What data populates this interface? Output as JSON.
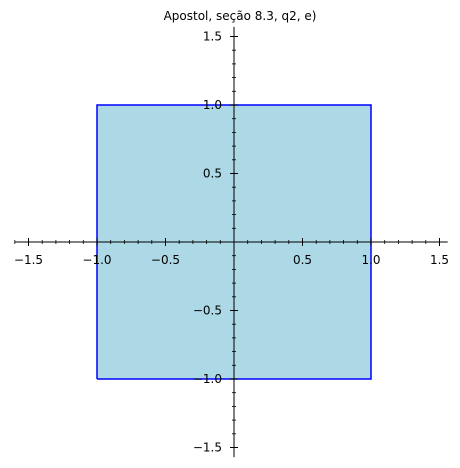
{
  "chart_data": {
    "type": "area",
    "title": "Apostol, seção 8.3, q2, e)",
    "xlabel": "",
    "ylabel": "",
    "xlim": [
      -1.6,
      1.56
    ],
    "ylim": [
      -1.57,
      1.57
    ],
    "grid": false,
    "x_ticks": [
      {
        "value": -1.5,
        "label": "−1.5"
      },
      {
        "value": -1.0,
        "label": "−1.0"
      },
      {
        "value": -0.5,
        "label": "−0.5"
      },
      {
        "value": 0.5,
        "label": "0.5"
      },
      {
        "value": 1.0,
        "label": "1.0"
      },
      {
        "value": 1.5,
        "label": "1.5"
      }
    ],
    "y_ticks": [
      {
        "value": 1.5,
        "label": "1.5"
      },
      {
        "value": 1.0,
        "label": "1.0"
      },
      {
        "value": 0.5,
        "label": "0.5"
      },
      {
        "value": -0.5,
        "label": "−0.5"
      },
      {
        "value": -1.0,
        "label": "−1.0"
      },
      {
        "value": -1.5,
        "label": "−1.5"
      }
    ],
    "series": [
      {
        "x": [
          -1,
          1,
          1,
          -1,
          -1
        ],
        "y": [
          -1,
          -1,
          1,
          1,
          -1
        ],
        "fill_color": "#add8e6",
        "edge_color": "#0000ff"
      }
    ]
  }
}
